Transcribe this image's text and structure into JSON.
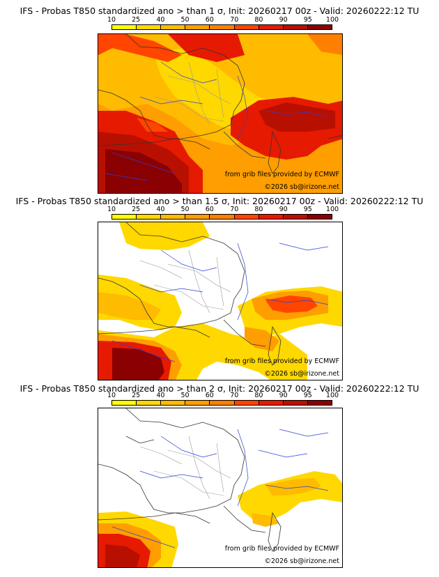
{
  "legend": {
    "ticks": [
      "10",
      "25",
      "40",
      "50",
      "60",
      "70",
      "80",
      "90",
      "95",
      "100"
    ],
    "colors": [
      "#ffff00",
      "#ffd800",
      "#ffbb00",
      "#ff9e00",
      "#ff7f00",
      "#ff4500",
      "#e61a00",
      "#b81000",
      "#8b0000"
    ]
  },
  "panels": [
    {
      "title": "IFS - Probas T850  standardized ano > than 1 σ, Init: 20260217 00z - Valid: 20260222:12 TU",
      "source": "from grib files provided by ECMWF",
      "copyright": "©2026 sb@irizone.net"
    },
    {
      "title": "IFS - Probas T850  standardized ano > than 1.5 σ, Init: 20260217 00z - Valid: 20260222:12 TU",
      "source": "from grib files provided by ECMWF",
      "copyright": "©2026 sb@irizone.net"
    },
    {
      "title": "IFS - Probas T850  standardized ano > than 2 σ, Init: 20260217 00z - Valid: 20260222:12 TU",
      "source": "from grib files provided by ECMWF",
      "copyright": "©2026 sb@irizone.net"
    }
  ]
}
